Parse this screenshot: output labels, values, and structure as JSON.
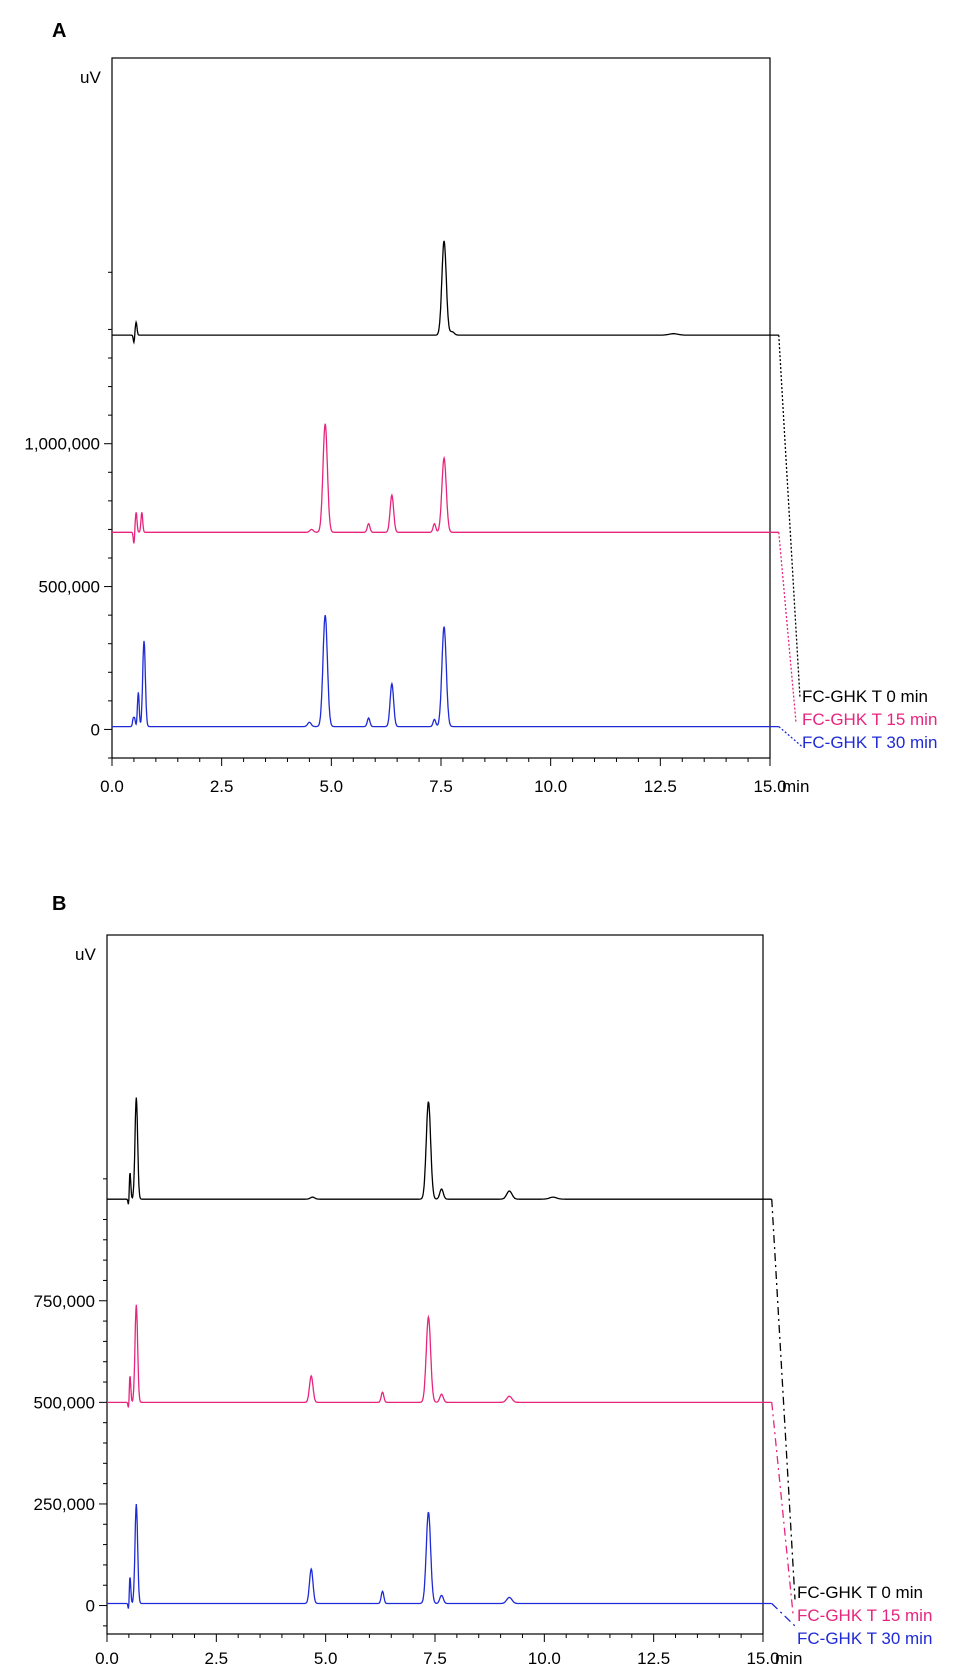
{
  "chart_data": [
    {
      "type": "line",
      "panel_label": "A",
      "ylabel": "uV",
      "xlabel": "min",
      "xlim": [
        0,
        15
      ],
      "ylim": [
        -100000,
        2350000
      ],
      "x_ticks": [
        0,
        2.5,
        5,
        7.5,
        10,
        12.5,
        15
      ],
      "x_tick_labels": [
        "0.0",
        "2.5",
        "5.0",
        "7.5",
        "10.0",
        "12.5",
        "15.0"
      ],
      "y_ticks": [
        0,
        500000,
        1000000
      ],
      "y_tick_labels": [
        "0",
        "500,000",
        "1,000,000"
      ],
      "series": [
        {
          "name": "FC-GHK T 0 min",
          "color": "#000000",
          "baseline": 1380000,
          "peaks": [
            [
              0.55,
              45000,
              0.02
            ],
            [
              7.57,
              330000,
              0.05
            ],
            [
              7.75,
              12000,
              0.05
            ],
            [
              12.8,
              5000,
              0.1
            ]
          ],
          "endpoint": 110000
        },
        {
          "name": "FC-GHK T 15 min",
          "color": "#e8257e",
          "baseline": 690000,
          "peaks": [
            [
              0.55,
              70000,
              0.02
            ],
            [
              0.68,
              70000,
              0.02
            ],
            [
              4.55,
              10000,
              0.04
            ],
            [
              4.86,
              380000,
              0.05
            ],
            [
              5.85,
              30000,
              0.03
            ],
            [
              6.38,
              130000,
              0.04
            ],
            [
              7.35,
              30000,
              0.03
            ],
            [
              7.57,
              260000,
              0.05
            ]
          ],
          "endpoint": 25000
        },
        {
          "name": "FC-GHK T 30 min",
          "color": "#1f2bd6",
          "baseline": 10000,
          "peaks": [
            [
              0.5,
              80000,
              0.02
            ],
            [
              0.6,
              120000,
              0.02
            ],
            [
              0.73,
              300000,
              0.03
            ],
            [
              4.5,
              15000,
              0.04
            ],
            [
              4.86,
              390000,
              0.05
            ],
            [
              5.85,
              30000,
              0.03
            ],
            [
              6.38,
              150000,
              0.04
            ],
            [
              7.35,
              25000,
              0.03
            ],
            [
              7.57,
              350000,
              0.05
            ]
          ],
          "endpoint": -60000
        }
      ]
    },
    {
      "type": "line",
      "panel_label": "B",
      "ylabel": "uV",
      "xlabel": "min",
      "xlim": [
        0,
        15
      ],
      "ylim": [
        -70000,
        1650000
      ],
      "x_ticks": [
        0,
        2.5,
        5,
        7.5,
        10,
        12.5,
        15
      ],
      "x_tick_labels": [
        "0.0",
        "2.5",
        "5.0",
        "7.5",
        "10.0",
        "12.5",
        "15.0"
      ],
      "y_ticks": [
        0,
        250000,
        500000,
        750000
      ],
      "y_tick_labels": [
        "0",
        "250,000",
        "500,000",
        "750,000"
      ],
      "series": [
        {
          "name": "FC-GHK T 0 min",
          "color": "#000000",
          "baseline": 1000000,
          "peaks": [
            [
              0.52,
              80000,
              0.02
            ],
            [
              0.67,
              250000,
              0.03
            ],
            [
              4.7,
              5000,
              0.05
            ],
            [
              7.35,
              240000,
              0.05
            ],
            [
              7.65,
              25000,
              0.04
            ],
            [
              9.2,
              20000,
              0.06
            ],
            [
              10.2,
              5000,
              0.08
            ]
          ],
          "endpoint": 15000
        },
        {
          "name": "FC-GHK T 15 min",
          "color": "#e8257e",
          "baseline": 500000,
          "peaks": [
            [
              0.52,
              80000,
              0.02
            ],
            [
              0.67,
              240000,
              0.03
            ],
            [
              4.67,
              65000,
              0.04
            ],
            [
              6.3,
              25000,
              0.03
            ],
            [
              7.35,
              210000,
              0.05
            ],
            [
              7.65,
              20000,
              0.04
            ],
            [
              9.2,
              15000,
              0.06
            ]
          ],
          "endpoint": -20000
        },
        {
          "name": "FC-GHK T 30 min",
          "color": "#1f2bd6",
          "baseline": 5000,
          "peaks": [
            [
              0.52,
              80000,
              0.02
            ],
            [
              0.67,
              245000,
              0.03
            ],
            [
              4.67,
              85000,
              0.04
            ],
            [
              6.3,
              30000,
              0.03
            ],
            [
              7.35,
              225000,
              0.05
            ],
            [
              7.65,
              20000,
              0.04
            ],
            [
              9.2,
              15000,
              0.06
            ]
          ],
          "endpoint": -55000
        }
      ]
    }
  ]
}
